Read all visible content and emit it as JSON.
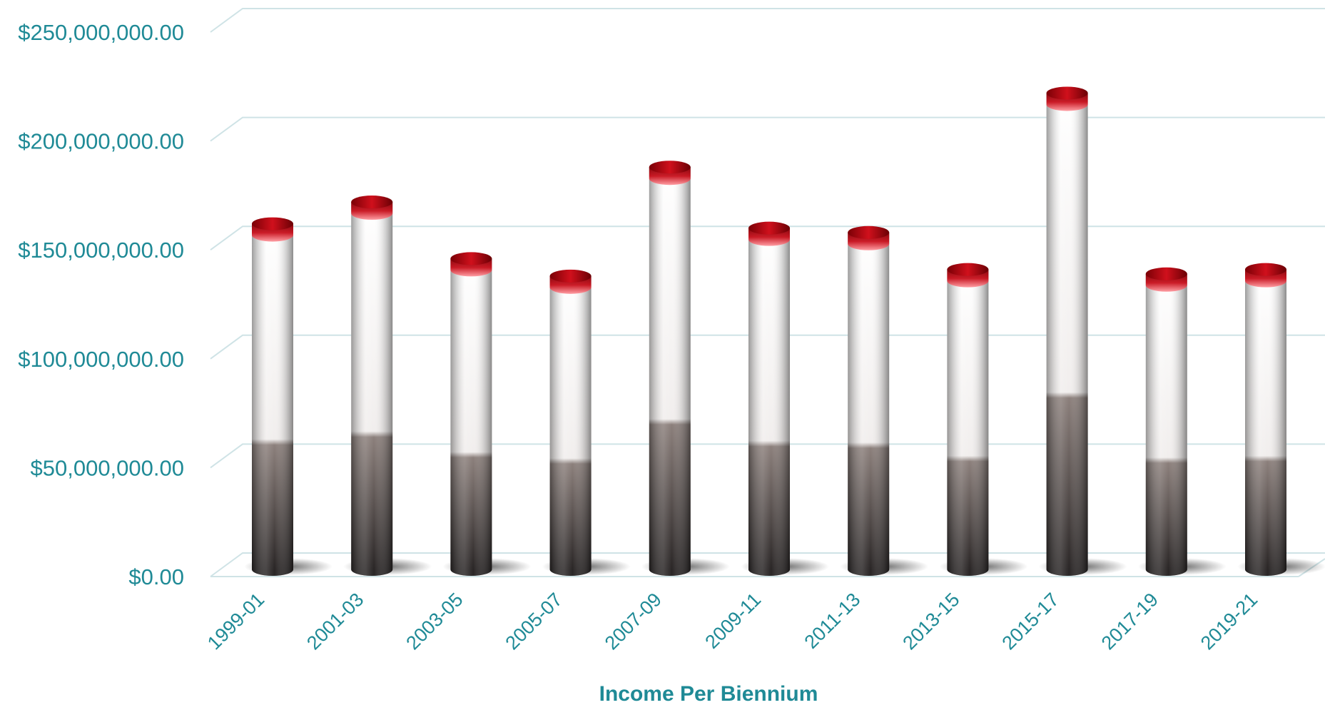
{
  "chart_data": {
    "type": "bar",
    "title": "",
    "xlabel": "Income Per Biennium",
    "ylabel": "",
    "ylim": [
      0,
      250000000
    ],
    "y_ticks": [
      "$0.00",
      "$50,000,000.00",
      "$100,000,000.00",
      "$150,000,000.00",
      "$200,000,000.00",
      "$250,000,000.00"
    ],
    "categories": [
      "1999-01",
      "2001-03",
      "2003-05",
      "2005-07",
      "2007-09",
      "2009-11",
      "2011-13",
      "2013-15",
      "2015-17",
      "2017-19",
      "2019-21"
    ],
    "values": [
      162000000,
      172000000,
      146000000,
      138000000,
      188000000,
      160000000,
      158000000,
      141000000,
      222000000,
      139000000,
      141000000
    ],
    "grid": true,
    "legend": "none",
    "colors": {
      "cap": "#b00010",
      "body_light": "#f4f1f0",
      "body_dark": "#2e2a2a",
      "text": "#1f8a96",
      "grid": "#cfe3e6"
    }
  }
}
